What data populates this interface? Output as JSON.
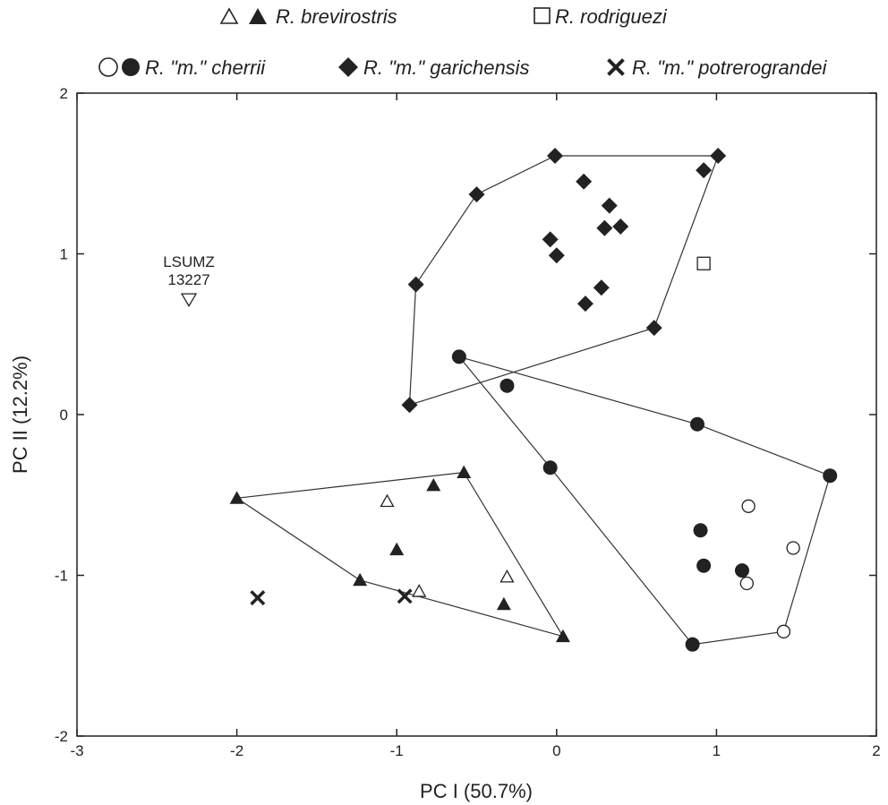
{
  "chart_data": {
    "type": "scatter",
    "xlabel": "PC I (50.7%)",
    "ylabel": "PC II (12.2%)",
    "xlim": [
      -3,
      2
    ],
    "ylim": [
      -2,
      2
    ],
    "x_ticks": [
      -3,
      -2,
      -1,
      0,
      1,
      2
    ],
    "y_ticks": [
      -2,
      -1,
      0,
      1,
      2
    ],
    "grid": false,
    "legend_position": "top",
    "legend": [
      {
        "label": "R. brevirostris",
        "markers": [
          "open-triangle",
          "filled-triangle"
        ],
        "row": 1
      },
      {
        "label": "R. rodriguezi",
        "markers": [
          "open-square"
        ],
        "row": 1
      },
      {
        "label": "R. \"m.\" cherrii",
        "markers": [
          "open-circle",
          "filled-circle"
        ],
        "row": 2
      },
      {
        "label": "R. \"m.\" garichensis",
        "markers": [
          "filled-diamond"
        ],
        "row": 2
      },
      {
        "label": "R. \"m.\" potrerograndei",
        "markers": [
          "cross"
        ],
        "row": 2
      }
    ],
    "series": [
      {
        "name": "R. brevirostris",
        "marker": "filled-triangle",
        "points": [
          [
            -2.0,
            -0.52
          ],
          [
            -0.58,
            -0.36
          ],
          [
            -0.77,
            -0.44
          ],
          [
            -1.0,
            -0.84
          ],
          [
            -1.23,
            -1.03
          ],
          [
            -0.33,
            -1.18
          ],
          [
            0.04,
            -1.38
          ]
        ]
      },
      {
        "name": "R. brevirostris",
        "marker": "open-triangle",
        "points": [
          [
            -1.06,
            -0.54
          ],
          [
            -0.86,
            -1.1
          ],
          [
            -0.31,
            -1.01
          ]
        ]
      },
      {
        "name": "R. rodriguezi",
        "marker": "open-square",
        "points": [
          [
            0.92,
            0.94
          ]
        ]
      },
      {
        "name": "R. \"m.\" cherrii",
        "marker": "filled-circle",
        "points": [
          [
            -0.61,
            0.36
          ],
          [
            -0.31,
            0.18
          ],
          [
            -0.04,
            -0.33
          ],
          [
            0.88,
            -0.06
          ],
          [
            1.71,
            -0.38
          ],
          [
            0.9,
            -0.72
          ],
          [
            0.92,
            -0.94
          ],
          [
            1.16,
            -0.97
          ],
          [
            0.85,
            -1.43
          ]
        ]
      },
      {
        "name": "R. \"m.\" cherrii",
        "marker": "open-circle",
        "points": [
          [
            1.2,
            -0.57
          ],
          [
            1.48,
            -0.83
          ],
          [
            1.19,
            -1.05
          ],
          [
            1.42,
            -1.35
          ]
        ]
      },
      {
        "name": "R. \"m.\" garichensis",
        "marker": "filled-diamond",
        "points": [
          [
            -0.5,
            1.37
          ],
          [
            -0.01,
            1.61
          ],
          [
            1.01,
            1.61
          ],
          [
            0.92,
            1.52
          ],
          [
            0.17,
            1.45
          ],
          [
            0.33,
            1.3
          ],
          [
            0.3,
            1.16
          ],
          [
            0.4,
            1.17
          ],
          [
            -0.04,
            1.09
          ],
          [
            0.0,
            0.99
          ],
          [
            0.28,
            0.79
          ],
          [
            0.18,
            0.69
          ],
          [
            -0.88,
            0.81
          ],
          [
            0.61,
            0.54
          ],
          [
            -0.92,
            0.06
          ]
        ]
      },
      {
        "name": "R. \"m.\" potrerograndei",
        "marker": "cross",
        "points": [
          [
            -1.87,
            -1.14
          ],
          [
            -0.95,
            -1.13
          ]
        ]
      },
      {
        "name": "LSUMZ 13227",
        "marker": "open-down-triangle",
        "points": [
          [
            -2.3,
            0.72
          ]
        ]
      }
    ],
    "hulls": [
      {
        "name": "R. \"m.\" garichensis",
        "points": [
          [
            -0.92,
            0.06
          ],
          [
            -0.88,
            0.81
          ],
          [
            -0.5,
            1.37
          ],
          [
            -0.01,
            1.61
          ],
          [
            1.01,
            1.61
          ],
          [
            0.61,
            0.54
          ]
        ]
      },
      {
        "name": "R. \"m.\" cherrii",
        "points": [
          [
            -0.61,
            0.36
          ],
          [
            0.88,
            -0.06
          ],
          [
            1.71,
            -0.38
          ],
          [
            1.42,
            -1.35
          ],
          [
            0.85,
            -1.43
          ],
          [
            -0.04,
            -0.33
          ]
        ]
      },
      {
        "name": "R. brevirostris",
        "points": [
          [
            -2.0,
            -0.52
          ],
          [
            -0.58,
            -0.36
          ],
          [
            0.04,
            -1.38
          ],
          [
            -1.23,
            -1.03
          ]
        ]
      }
    ],
    "annotation": {
      "lines": [
        "LSUMZ",
        "13227"
      ],
      "x": -2.3,
      "y": 0.72
    }
  }
}
